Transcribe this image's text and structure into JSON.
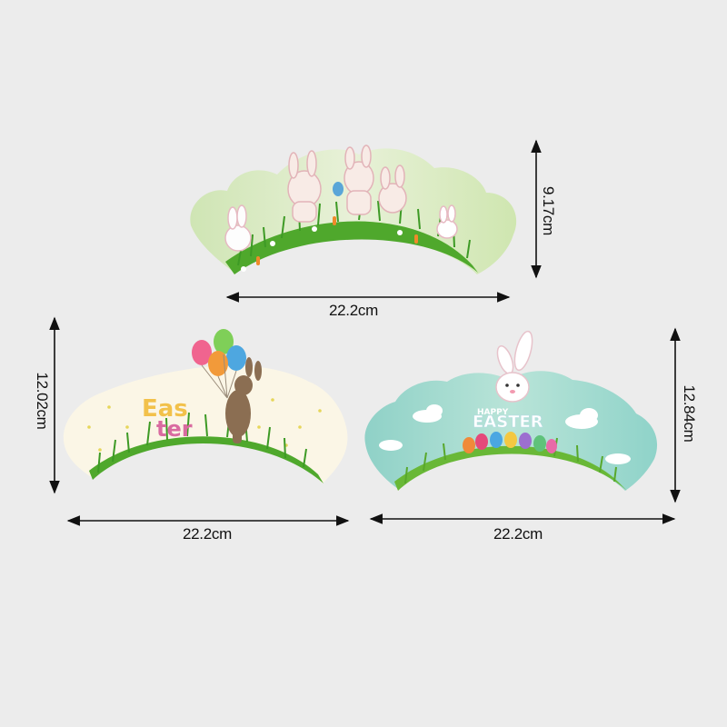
{
  "colors": {
    "background": "#ececec",
    "wrapper1_sky": "#dcebc4",
    "wrapper2_paper": "#fbf6e6",
    "wrapper3_sky": "#a6dccf",
    "grass": "#4fa82c",
    "ink": "#111111"
  },
  "wrappers": [
    {
      "theme": "bunnies-in-grass",
      "height_label": "9.17cm",
      "width_label": "22.2cm"
    },
    {
      "theme": "easter-balloon-rabbit",
      "art_text": [
        "Eas",
        "ter"
      ],
      "height_label": "12.02cm",
      "width_label": "22.2cm"
    },
    {
      "theme": "happy-easter-bunny",
      "art_text": [
        "HAPPY",
        "EASTER"
      ],
      "height_label": "12.84cm",
      "width_label": "22.2cm"
    }
  ]
}
